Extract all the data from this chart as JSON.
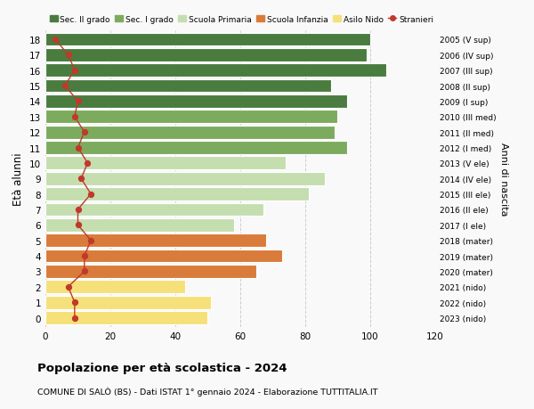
{
  "ages": [
    18,
    17,
    16,
    15,
    14,
    13,
    12,
    11,
    10,
    9,
    8,
    7,
    6,
    5,
    4,
    3,
    2,
    1,
    0
  ],
  "bar_values": [
    100,
    99,
    105,
    88,
    93,
    90,
    89,
    93,
    74,
    86,
    81,
    67,
    58,
    68,
    73,
    65,
    43,
    51,
    50
  ],
  "stranieri_values": [
    3,
    7,
    9,
    6,
    10,
    9,
    12,
    10,
    13,
    11,
    14,
    10,
    10,
    14,
    12,
    12,
    7,
    9,
    9
  ],
  "right_labels": [
    "2005 (V sup)",
    "2006 (IV sup)",
    "2007 (III sup)",
    "2008 (II sup)",
    "2009 (I sup)",
    "2010 (III med)",
    "2011 (II med)",
    "2012 (I med)",
    "2013 (V ele)",
    "2014 (IV ele)",
    "2015 (III ele)",
    "2016 (II ele)",
    "2017 (I ele)",
    "2018 (mater)",
    "2019 (mater)",
    "2020 (mater)",
    "2021 (nido)",
    "2022 (nido)",
    "2023 (nido)"
  ],
  "bar_colors": [
    "#4a7c3f",
    "#4a7c3f",
    "#4a7c3f",
    "#4a7c3f",
    "#4a7c3f",
    "#7dab5e",
    "#7dab5e",
    "#7dab5e",
    "#c5deb0",
    "#c5deb0",
    "#c5deb0",
    "#c5deb0",
    "#c5deb0",
    "#d97b3a",
    "#d97b3a",
    "#d97b3a",
    "#f5e07a",
    "#f5e07a",
    "#f5e07a"
  ],
  "legend_labels": [
    "Sec. II grado",
    "Sec. I grado",
    "Scuola Primaria",
    "Scuola Infanzia",
    "Asilo Nido",
    "Stranieri"
  ],
  "legend_colors": [
    "#4a7c3f",
    "#7dab5e",
    "#c5deb0",
    "#d97b3a",
    "#f5e07a",
    "#c0392b"
  ],
  "stranieri_color": "#c0392b",
  "title": "Popolazione per età scolastica - 2024",
  "subtitle": "COMUNE DI SALÒ (BS) - Dati ISTAT 1° gennaio 2024 - Elaborazione TUTTITALIA.IT",
  "ylabel": "Età alunni",
  "right_ylabel": "Anni di nascita",
  "xlim": [
    0,
    120
  ],
  "xticks": [
    0,
    20,
    40,
    60,
    80,
    100,
    120
  ],
  "bg_color": "#f9f9f9",
  "bar_edge_color": "white",
  "grid_color": "#cccccc"
}
